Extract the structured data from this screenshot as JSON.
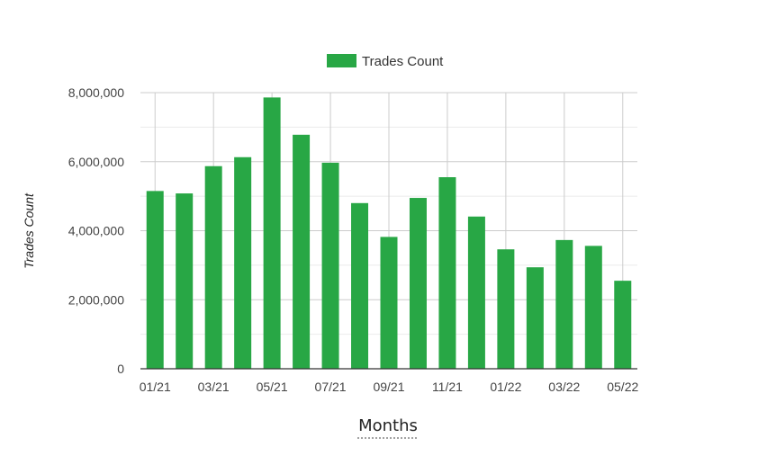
{
  "chart_data": {
    "type": "bar",
    "categories": [
      "01/21",
      "02/21",
      "03/21",
      "04/21",
      "05/21",
      "06/21",
      "07/21",
      "08/21",
      "09/21",
      "10/21",
      "11/21",
      "12/21",
      "01/22",
      "02/22",
      "03/22",
      "04/22",
      "05/22"
    ],
    "x_tick_labels": [
      "01/21",
      "03/21",
      "05/21",
      "07/21",
      "09/21",
      "11/21",
      "01/22",
      "03/22",
      "05/22"
    ],
    "series": [
      {
        "name": "Trades Count",
        "color": "#28a745",
        "values": [
          5150000,
          5080000,
          5870000,
          6130000,
          7860000,
          6780000,
          5970000,
          4800000,
          3820000,
          4950000,
          5550000,
          4410000,
          3460000,
          2940000,
          3730000,
          3560000,
          2550000
        ]
      }
    ],
    "ylim": [
      0,
      8000000
    ],
    "y_ticks": [
      0,
      2000000,
      4000000,
      6000000,
      8000000
    ],
    "y_tick_labels": [
      "0",
      "2,000,000",
      "4,000,000",
      "6,000,000",
      "8,000,000"
    ],
    "xlabel": "Months",
    "ylabel": "Trades Count",
    "legend_position": "top",
    "grid": true
  }
}
